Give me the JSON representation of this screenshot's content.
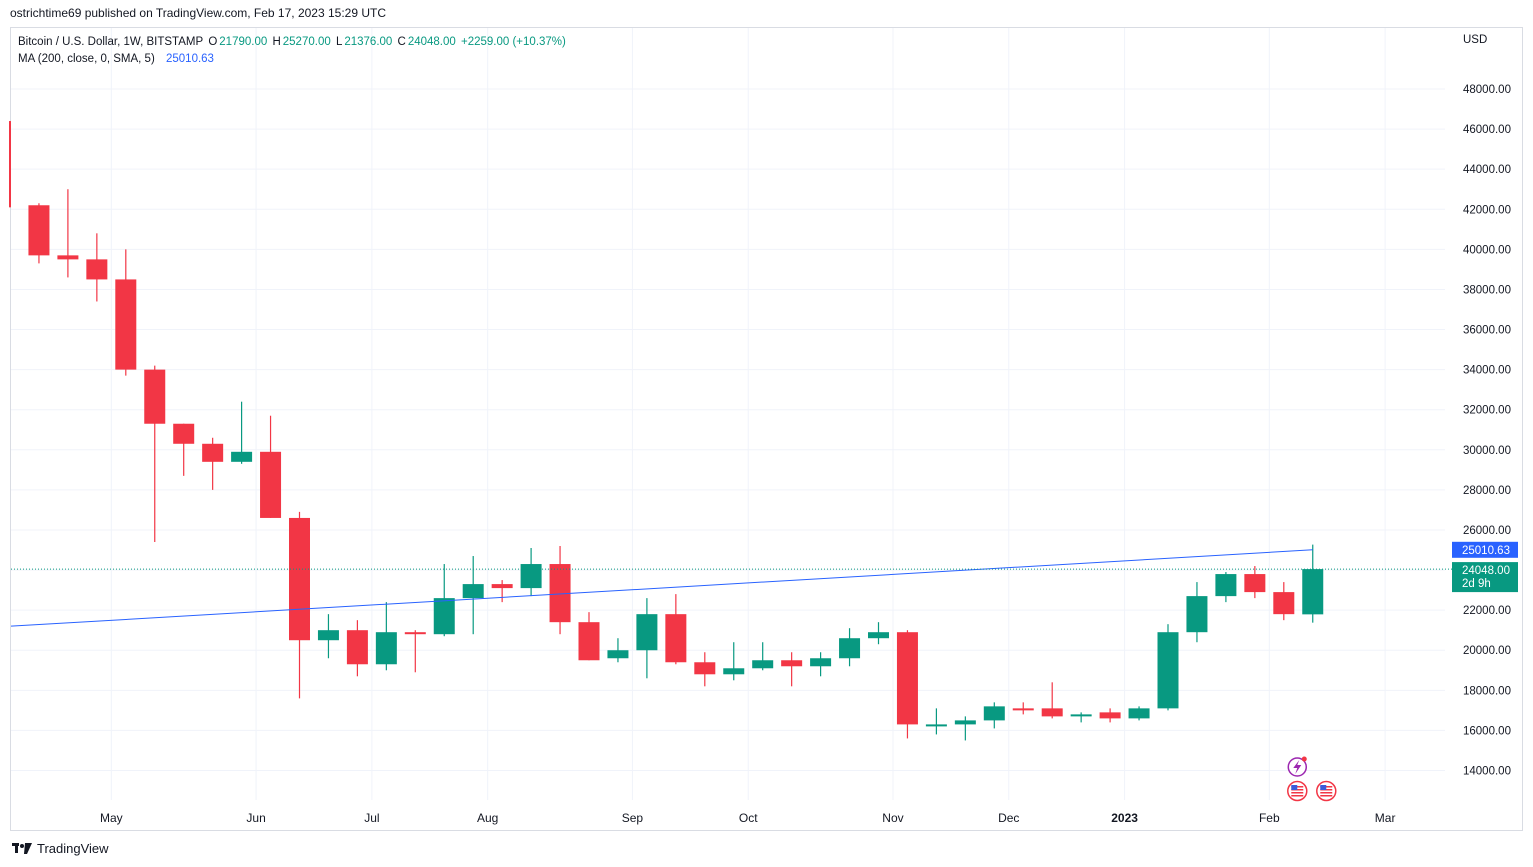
{
  "header": {
    "published": "ostrichtime69 published on TradingView.com, Feb 17, 2023 15:29 UTC"
  },
  "legend": {
    "symbol": "Bitcoin / U.S. Dollar, 1W, BITSTAMP",
    "o_label": "O",
    "o_value": "21790.00",
    "h_label": "H",
    "h_value": "25270.00",
    "l_label": "L",
    "l_value": "21376.00",
    "c_label": "C",
    "c_value": "24048.00",
    "change": "+2259.00 (+10.37%)",
    "ma_label": "MA (200, close, 0, SMA, 5)",
    "ma_value": "25010.63"
  },
  "currency": "USD",
  "brand": "TradingView",
  "colors": {
    "up": "#089981",
    "down": "#f23645",
    "ma": "#2962ff",
    "grid": "#f0f3fa",
    "text": "#131722"
  },
  "chart_data": {
    "type": "candlestick",
    "symbol": "BTCUSD",
    "interval": "1W",
    "ylim": [
      13000,
      50000
    ],
    "y_ticks": [
      "14000.00",
      "16000.00",
      "18000.00",
      "20000.00",
      "22000.00",
      "24000.00",
      "26000.00",
      "28000.00",
      "30000.00",
      "32000.00",
      "34000.00",
      "36000.00",
      "38000.00",
      "40000.00",
      "42000.00",
      "44000.00",
      "46000.00",
      "48000.00"
    ],
    "x_labels": [
      {
        "label": "May",
        "bar": 3.5
      },
      {
        "label": "Jun",
        "bar": 8.5
      },
      {
        "label": "Jul",
        "bar": 12.5
      },
      {
        "label": "Aug",
        "bar": 16.5
      },
      {
        "label": "Sep",
        "bar": 21.5
      },
      {
        "label": "Oct",
        "bar": 25.5
      },
      {
        "label": "Nov",
        "bar": 30.5
      },
      {
        "label": "Dec",
        "bar": 34.5
      },
      {
        "label": "2023",
        "bar": 38.5,
        "bold": true
      },
      {
        "label": "Feb",
        "bar": 43.5
      },
      {
        "label": "Mar",
        "bar": 47.5
      }
    ],
    "candles": [
      {
        "o": 46400,
        "h": 46400,
        "l": 42100,
        "c": 42100
      },
      {
        "o": 42200,
        "h": 42300,
        "l": 39300,
        "c": 39700
      },
      {
        "o": 39700,
        "h": 43000,
        "l": 38600,
        "c": 39500
      },
      {
        "o": 39500,
        "h": 40800,
        "l": 37400,
        "c": 38500
      },
      {
        "o": 38500,
        "h": 40000,
        "l": 33700,
        "c": 34000
      },
      {
        "o": 34000,
        "h": 34200,
        "l": 25400,
        "c": 31300
      },
      {
        "o": 31300,
        "h": 31300,
        "l": 28700,
        "c": 30300
      },
      {
        "o": 30300,
        "h": 30600,
        "l": 28000,
        "c": 29400
      },
      {
        "o": 29400,
        "h": 32400,
        "l": 29300,
        "c": 29900
      },
      {
        "o": 29900,
        "h": 31700,
        "l": 26600,
        "c": 26600
      },
      {
        "o": 26600,
        "h": 26900,
        "l": 17600,
        "c": 20500
      },
      {
        "o": 20500,
        "h": 21800,
        "l": 19600,
        "c": 21000
      },
      {
        "o": 21000,
        "h": 21500,
        "l": 18700,
        "c": 19300
      },
      {
        "o": 19300,
        "h": 22400,
        "l": 19000,
        "c": 20900
      },
      {
        "o": 20900,
        "h": 21000,
        "l": 18900,
        "c": 20800
      },
      {
        "o": 20800,
        "h": 24300,
        "l": 20700,
        "c": 22600
      },
      {
        "o": 22600,
        "h": 24700,
        "l": 20800,
        "c": 23300
      },
      {
        "o": 23300,
        "h": 23500,
        "l": 22400,
        "c": 23100
      },
      {
        "o": 23100,
        "h": 25100,
        "l": 22700,
        "c": 24300
      },
      {
        "o": 24300,
        "h": 25200,
        "l": 20800,
        "c": 21400
      },
      {
        "o": 21400,
        "h": 21900,
        "l": 19500,
        "c": 19500
      },
      {
        "o": 19600,
        "h": 20600,
        "l": 19400,
        "c": 20000
      },
      {
        "o": 20000,
        "h": 22600,
        "l": 18600,
        "c": 21800
      },
      {
        "o": 21800,
        "h": 22800,
        "l": 19300,
        "c": 19400
      },
      {
        "o": 19400,
        "h": 19900,
        "l": 18200,
        "c": 18800
      },
      {
        "o": 18800,
        "h": 20400,
        "l": 18500,
        "c": 19100
      },
      {
        "o": 19100,
        "h": 20400,
        "l": 19000,
        "c": 19500
      },
      {
        "o": 19500,
        "h": 19900,
        "l": 18200,
        "c": 19200
      },
      {
        "o": 19200,
        "h": 19900,
        "l": 18700,
        "c": 19600
      },
      {
        "o": 19600,
        "h": 21100,
        "l": 19200,
        "c": 20600
      },
      {
        "o": 20600,
        "h": 21400,
        "l": 20300,
        "c": 20900
      },
      {
        "o": 20900,
        "h": 21000,
        "l": 15600,
        "c": 16300
      },
      {
        "o": 16300,
        "h": 17100,
        "l": 15800,
        "c": 16300
      },
      {
        "o": 16300,
        "h": 16700,
        "l": 15500,
        "c": 16500
      },
      {
        "o": 16500,
        "h": 17400,
        "l": 16100,
        "c": 17200
      },
      {
        "o": 17100,
        "h": 17400,
        "l": 16800,
        "c": 17000
      },
      {
        "o": 17100,
        "h": 18400,
        "l": 16600,
        "c": 16700
      },
      {
        "o": 16700,
        "h": 16900,
        "l": 16400,
        "c": 16800
      },
      {
        "o": 16900,
        "h": 17100,
        "l": 16400,
        "c": 16600
      },
      {
        "o": 16600,
        "h": 17200,
        "l": 16500,
        "c": 17100
      },
      {
        "o": 17100,
        "h": 21300,
        "l": 17000,
        "c": 20900
      },
      {
        "o": 20900,
        "h": 23400,
        "l": 20400,
        "c": 22700
      },
      {
        "o": 22700,
        "h": 23900,
        "l": 22400,
        "c": 23800
      },
      {
        "o": 23800,
        "h": 24200,
        "l": 22600,
        "c": 22900
      },
      {
        "o": 22900,
        "h": 23400,
        "l": 21500,
        "c": 21800
      },
      {
        "o": 21790,
        "h": 25270,
        "l": 21376,
        "c": 24048
      }
    ],
    "ma_line": {
      "name": "MA (200, close, 0, SMA, 5)",
      "start_value": 21200,
      "end_value": 25010.63
    },
    "last_price": "24048.00",
    "countdown": "2d 9h",
    "ma_last": "25010.63",
    "legend_position": "top-left",
    "grid": true
  },
  "event_icons": [
    "lightning-event-icon",
    "us-flag-event-icon",
    "us-flag-event-icon"
  ]
}
